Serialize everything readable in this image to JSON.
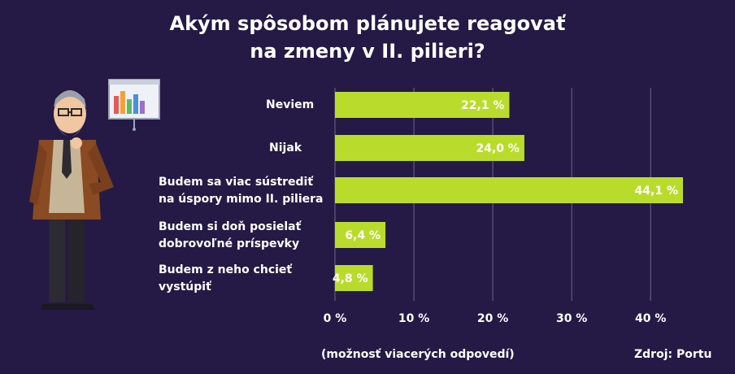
{
  "title_line1": "Akým spôsobom plánujete reagovať",
  "title_line2": "na zmeny v II. pilieri?",
  "chart_data": {
    "type": "bar",
    "orientation": "horizontal",
    "categories": [
      [
        "Neviem"
      ],
      [
        "Nijak"
      ],
      [
        "Budem sa viac sústrediť",
        "na úspory mimo II. piliera"
      ],
      [
        "Budem si doň posielať",
        "dobrovoľné príspevky"
      ],
      [
        "Budem z neho chcieť",
        "vystúpiť"
      ]
    ],
    "values": [
      22.1,
      24.0,
      44.1,
      6.4,
      4.8
    ],
    "value_labels": [
      "22,1 %",
      "24,0 %",
      "44,1 %",
      "6,4 %",
      "4,8 %"
    ],
    "xlim": [
      0,
      44.1
    ],
    "xticks": [
      0,
      10,
      20,
      30,
      40
    ],
    "xtick_labels": [
      "0 %",
      "10 %",
      "20 %",
      "30 %",
      "40 %"
    ],
    "grid": true,
    "bar_color": "#b9dc2c"
  },
  "footnote": "(možnosť viacerých odpovedí)",
  "source": "Zdroj: Portu",
  "colors": {
    "background": "#241a45",
    "bar": "#b9dc2c",
    "text": "#ffffff"
  }
}
